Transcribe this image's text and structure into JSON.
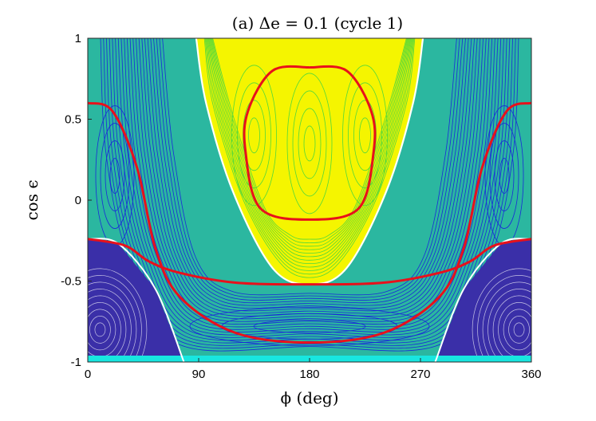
{
  "chart_data": {
    "type": "contour",
    "title": "(a) Δe = 0.1 (cycle 1)",
    "xlabel": "ϕ (deg)",
    "ylabel": "cos ϵ",
    "xlim": [
      0,
      360
    ],
    "ylim": [
      -1,
      1
    ],
    "xticks": [
      0,
      90,
      180,
      270,
      360
    ],
    "xtick_labels": [
      "0",
      "90",
      "180",
      "270",
      "360"
    ],
    "yticks": [
      1,
      0.5,
      0,
      -0.5,
      -1
    ],
    "ytick_labels": [
      "1",
      "0.5",
      "0",
      "-0.5",
      "-1"
    ],
    "grid": false,
    "colors": {
      "background_fill": "#2bb7a0",
      "contour_blue": "#1a2ad8",
      "yellow_region": "#f5f500",
      "contour_green": "#52d83a",
      "deep_blue": "#3a2fa8",
      "separatrix_red": "#e8111b",
      "boundary_white": "#ffffff",
      "bottom_cyan": "#18e6e0"
    },
    "separatrices": [
      {
        "points": [
          [
            180,
            0.82
          ],
          [
            150,
            0.8
          ],
          [
            130,
            0.55
          ],
          [
            128,
            0.3
          ],
          [
            140,
            -0.05
          ],
          [
            180,
            -0.12
          ],
          [
            220,
            -0.05
          ],
          [
            232,
            0.3
          ],
          [
            230,
            0.55
          ],
          [
            210,
            0.8
          ],
          [
            180,
            0.82
          ]
        ]
      },
      {
        "points": [
          [
            0,
            -0.24
          ],
          [
            30,
            -0.28
          ],
          [
            50,
            -0.38
          ],
          [
            75,
            -0.45
          ],
          [
            120,
            -0.51
          ],
          [
            180,
            -0.52
          ],
          [
            240,
            -0.51
          ],
          [
            285,
            -0.45
          ],
          [
            310,
            -0.38
          ],
          [
            330,
            -0.28
          ],
          [
            360,
            -0.24
          ]
        ]
      },
      {
        "points": [
          [
            0,
            0.6
          ],
          [
            20,
            0.55
          ],
          [
            40,
            0.2
          ],
          [
            55,
            -0.3
          ],
          [
            75,
            -0.6
          ],
          [
            120,
            -0.82
          ],
          [
            180,
            -0.88
          ],
          [
            240,
            -0.82
          ],
          [
            285,
            -0.6
          ],
          [
            305,
            -0.3
          ],
          [
            320,
            0.2
          ],
          [
            340,
            0.55
          ],
          [
            360,
            0.6
          ]
        ]
      }
    ],
    "fill_regions": [
      "background",
      "yellow_lobe",
      "left_deep_blue",
      "right_deep_blue"
    ]
  }
}
